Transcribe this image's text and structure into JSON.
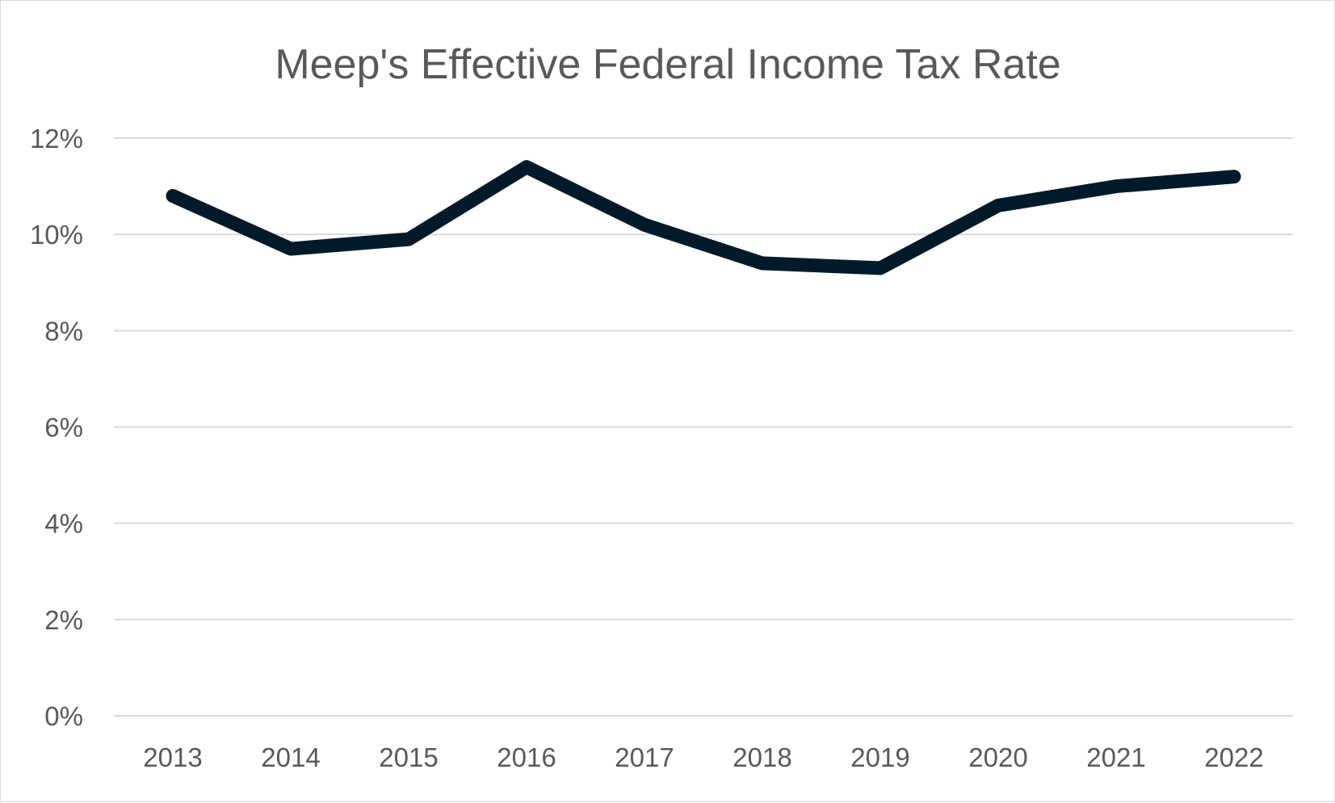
{
  "chart_data": {
    "type": "line",
    "title": "Meep's Effective Federal Income Tax Rate",
    "xlabel": "",
    "ylabel": "",
    "categories": [
      "2013",
      "2014",
      "2015",
      "2016",
      "2017",
      "2018",
      "2019",
      "2020",
      "2021",
      "2022"
    ],
    "series": [
      {
        "values": [
          10.8,
          9.7,
          9.9,
          11.4,
          10.2,
          9.4,
          9.3,
          10.6,
          11.0,
          11.2
        ],
        "color": "#001a29"
      }
    ],
    "yticks": [
      "0%",
      "2%",
      "4%",
      "6%",
      "8%",
      "10%",
      "12%"
    ],
    "ylim": [
      0,
      12
    ],
    "grid": true,
    "legend": "none"
  }
}
